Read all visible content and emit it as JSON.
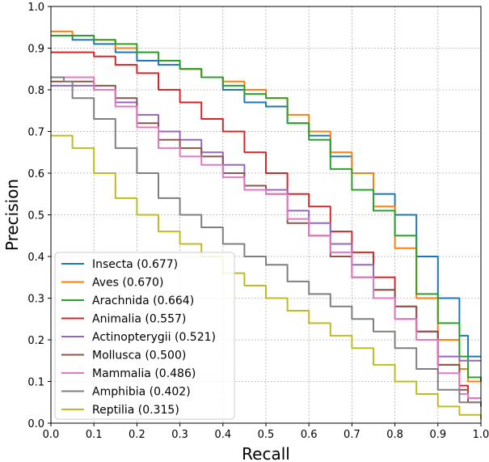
{
  "chart_data": {
    "type": "line",
    "xlabel": "Recall",
    "ylabel": "Precision",
    "xlim": [
      0.0,
      1.0
    ],
    "ylim": [
      0.0,
      1.0
    ],
    "grid": true,
    "legend_position": "bottom-left",
    "x_ticks": [
      "0.0",
      "0.1",
      "0.2",
      "0.3",
      "0.4",
      "0.5",
      "0.6",
      "0.7",
      "0.8",
      "0.9",
      "1.0"
    ],
    "y_ticks": [
      "0.0",
      "0.1",
      "0.2",
      "0.3",
      "0.4",
      "0.5",
      "0.6",
      "0.7",
      "0.8",
      "0.9",
      "1.0"
    ],
    "series": [
      {
        "name": "Insecta (0.677)",
        "color": "#1f77b4",
        "x": [
          0,
          0.05,
          0.1,
          0.15,
          0.2,
          0.25,
          0.3,
          0.35,
          0.4,
          0.45,
          0.5,
          0.55,
          0.6,
          0.65,
          0.7,
          0.75,
          0.8,
          0.85,
          0.9,
          0.95,
          0.97,
          1.0
        ],
        "y": [
          0.93,
          0.92,
          0.91,
          0.89,
          0.87,
          0.86,
          0.85,
          0.83,
          0.8,
          0.77,
          0.76,
          0.72,
          0.69,
          0.64,
          0.6,
          0.55,
          0.5,
          0.4,
          0.3,
          0.21,
          0.16,
          0.16
        ]
      },
      {
        "name": "Aves (0.670)",
        "color": "#ff7f0e",
        "x": [
          0,
          0.05,
          0.1,
          0.15,
          0.2,
          0.25,
          0.3,
          0.35,
          0.4,
          0.45,
          0.5,
          0.55,
          0.6,
          0.65,
          0.7,
          0.75,
          0.8,
          0.85,
          0.9,
          0.95,
          0.97,
          1.0
        ],
        "y": [
          0.94,
          0.93,
          0.92,
          0.9,
          0.89,
          0.87,
          0.85,
          0.83,
          0.82,
          0.8,
          0.78,
          0.74,
          0.7,
          0.65,
          0.6,
          0.52,
          0.42,
          0.3,
          0.2,
          0.13,
          0.1,
          0.1
        ]
      },
      {
        "name": "Arachnida (0.664)",
        "color": "#2ca02c",
        "x": [
          0,
          0.05,
          0.1,
          0.15,
          0.2,
          0.25,
          0.3,
          0.35,
          0.4,
          0.45,
          0.5,
          0.55,
          0.6,
          0.65,
          0.7,
          0.75,
          0.8,
          0.85,
          0.9,
          0.95,
          0.97,
          1.0
        ],
        "y": [
          0.93,
          0.93,
          0.92,
          0.91,
          0.89,
          0.87,
          0.85,
          0.83,
          0.81,
          0.79,
          0.78,
          0.72,
          0.68,
          0.61,
          0.56,
          0.51,
          0.45,
          0.31,
          0.24,
          0.16,
          0.11,
          0.1
        ]
      },
      {
        "name": "Animalia (0.557)",
        "color": "#d62728",
        "x": [
          0,
          0.05,
          0.1,
          0.15,
          0.2,
          0.25,
          0.3,
          0.35,
          0.4,
          0.45,
          0.5,
          0.55,
          0.6,
          0.65,
          0.7,
          0.75,
          0.8,
          0.85,
          0.9,
          0.95,
          0.97,
          1.0
        ],
        "y": [
          0.89,
          0.89,
          0.88,
          0.86,
          0.84,
          0.8,
          0.77,
          0.73,
          0.7,
          0.65,
          0.6,
          0.55,
          0.52,
          0.46,
          0.41,
          0.35,
          0.28,
          0.22,
          0.14,
          0.09,
          0.06,
          0.06
        ]
      },
      {
        "name": "Actinopterygii (0.521)",
        "color": "#9467bd",
        "x": [
          0,
          0.05,
          0.1,
          0.15,
          0.2,
          0.25,
          0.3,
          0.35,
          0.4,
          0.45,
          0.5,
          0.55,
          0.6,
          0.65,
          0.7,
          0.75,
          0.8,
          0.85,
          0.9,
          0.95,
          0.97,
          1.0
        ],
        "y": [
          0.81,
          0.81,
          0.8,
          0.77,
          0.74,
          0.7,
          0.68,
          0.65,
          0.62,
          0.57,
          0.56,
          0.51,
          0.48,
          0.43,
          0.38,
          0.32,
          0.25,
          0.22,
          0.16,
          0.15,
          0.15,
          0.15
        ]
      },
      {
        "name": "Mollusca (0.500)",
        "color": "#8c564b",
        "x": [
          0,
          0.05,
          0.1,
          0.15,
          0.2,
          0.25,
          0.3,
          0.35,
          0.4,
          0.45,
          0.5,
          0.55,
          0.6,
          0.65,
          0.7,
          0.75,
          0.8,
          0.85,
          0.9,
          0.95,
          0.97,
          1.0
        ],
        "y": [
          0.82,
          0.82,
          0.81,
          0.78,
          0.72,
          0.68,
          0.66,
          0.64,
          0.6,
          0.57,
          0.55,
          0.48,
          0.45,
          0.4,
          0.35,
          0.32,
          0.28,
          0.22,
          0.14,
          0.08,
          0.05,
          0.05
        ]
      },
      {
        "name": "Mammalia (0.486)",
        "color": "#e377c2",
        "x": [
          0,
          0.05,
          0.1,
          0.15,
          0.2,
          0.25,
          0.3,
          0.35,
          0.4,
          0.45,
          0.5,
          0.55,
          0.6,
          0.65,
          0.7,
          0.75,
          0.8,
          0.85,
          0.9,
          0.95,
          0.97,
          1.0
        ],
        "y": [
          0.83,
          0.83,
          0.8,
          0.76,
          0.71,
          0.66,
          0.64,
          0.62,
          0.59,
          0.56,
          0.55,
          0.49,
          0.45,
          0.41,
          0.35,
          0.3,
          0.25,
          0.2,
          0.12,
          0.07,
          0.06,
          0.06
        ]
      },
      {
        "name": "Amphibia (0.402)",
        "color": "#7f7f7f",
        "x": [
          0,
          0.03,
          0.05,
          0.1,
          0.15,
          0.2,
          0.25,
          0.3,
          0.35,
          0.4,
          0.45,
          0.5,
          0.55,
          0.6,
          0.65,
          0.7,
          0.75,
          0.8,
          0.85,
          0.9,
          0.95,
          1.0
        ],
        "y": [
          0.83,
          0.82,
          0.78,
          0.73,
          0.66,
          0.6,
          0.54,
          0.5,
          0.47,
          0.43,
          0.4,
          0.38,
          0.34,
          0.31,
          0.28,
          0.25,
          0.22,
          0.18,
          0.13,
          0.08,
          0.05,
          0.04
        ]
      },
      {
        "name": "Reptilia (0.315)",
        "color": "#bcbd22",
        "x": [
          0,
          0.03,
          0.05,
          0.1,
          0.15,
          0.2,
          0.25,
          0.3,
          0.35,
          0.4,
          0.45,
          0.5,
          0.55,
          0.6,
          0.65,
          0.7,
          0.75,
          0.8,
          0.85,
          0.9,
          0.95,
          1.0
        ],
        "y": [
          0.69,
          0.69,
          0.66,
          0.6,
          0.54,
          0.5,
          0.46,
          0.43,
          0.4,
          0.36,
          0.33,
          0.3,
          0.27,
          0.24,
          0.21,
          0.18,
          0.14,
          0.1,
          0.07,
          0.04,
          0.02,
          0.01
        ]
      }
    ]
  }
}
